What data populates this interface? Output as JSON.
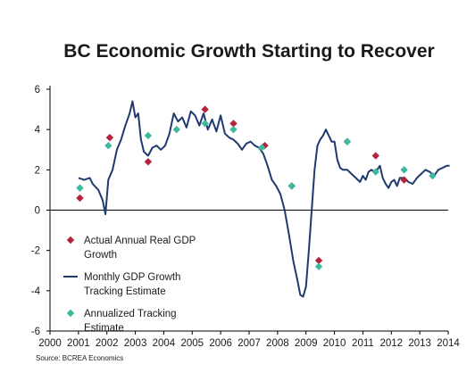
{
  "chart_data": {
    "type": "line",
    "title": "BC Economic Growth Starting to Recover",
    "xlabel": "",
    "ylabel": "",
    "source": "Source: BCREA Economics",
    "xlim": [
      2000,
      2014
    ],
    "ylim": [
      -6,
      6
    ],
    "x_ticks": [
      "2000",
      "2001",
      "2002",
      "2003",
      "2004",
      "2005",
      "2006",
      "2007",
      "2008",
      "2009",
      "2010",
      "2011",
      "2012",
      "2013",
      "2014"
    ],
    "y_ticks": [
      "6",
      "4",
      "2",
      "0",
      "-2",
      "-4",
      "-6"
    ],
    "grid": false,
    "legend_position": "lower-left",
    "legend": [
      {
        "label_lines": [
          "Actual Annual Real GDP",
          "Growth"
        ],
        "marker": "diamond",
        "color": "#b4233a"
      },
      {
        "label_lines": [
          "Monthly GDP Growth",
          "Tracking Estimate"
        ],
        "marker": "line",
        "color": "#1f3a6e"
      },
      {
        "label_lines": [
          "Annualized Tracking",
          "Estimate"
        ],
        "marker": "diamond",
        "color": "#3db89e"
      }
    ],
    "series": [
      {
        "name": "Monthly GDP Growth Tracking Estimate",
        "color": "#1f3a6e",
        "x": [
          2001.0,
          2001.2,
          2001.4,
          2001.5,
          2001.7,
          2001.85,
          2001.95,
          2002.05,
          2002.2,
          2002.35,
          2002.5,
          2002.65,
          2002.8,
          2002.9,
          2003.0,
          2003.1,
          2003.2,
          2003.3,
          2003.45,
          2003.6,
          2003.75,
          2003.9,
          2004.05,
          2004.2,
          2004.35,
          2004.5,
          2004.65,
          2004.8,
          2004.95,
          2005.1,
          2005.25,
          2005.4,
          2005.55,
          2005.7,
          2005.85,
          2006.0,
          2006.15,
          2006.3,
          2006.45,
          2006.6,
          2006.75,
          2006.9,
          2007.05,
          2007.2,
          2007.35,
          2007.5,
          2007.65,
          2007.8,
          2007.95,
          2008.1,
          2008.25,
          2008.4,
          2008.55,
          2008.7,
          2008.8,
          2008.9,
          2009.0,
          2009.1,
          2009.2,
          2009.3,
          2009.4,
          2009.5,
          2009.6,
          2009.7,
          2009.8,
          2009.9,
          2010.0,
          2010.1,
          2010.2,
          2010.3,
          2010.45,
          2010.6,
          2010.75,
          2010.9,
          2011.0,
          2011.1,
          2011.2,
          2011.3,
          2011.4,
          2011.5,
          2011.6,
          2011.7,
          2011.8,
          2011.9,
          2012.0,
          2012.1,
          2012.2,
          2012.3,
          2012.45,
          2012.6,
          2012.75,
          2012.9,
          2013.05,
          2013.2,
          2013.35,
          2013.5,
          2013.65,
          2013.8,
          2013.95,
          2014.05
        ],
        "y": [
          1.6,
          1.5,
          1.6,
          1.3,
          1.0,
          0.5,
          -0.2,
          1.5,
          2.0,
          3.0,
          3.5,
          4.2,
          4.8,
          5.4,
          4.6,
          4.8,
          3.5,
          2.9,
          2.7,
          3.1,
          3.2,
          3.0,
          3.2,
          3.8,
          4.8,
          4.4,
          4.6,
          4.1,
          4.9,
          4.7,
          4.2,
          4.8,
          4.0,
          4.5,
          3.9,
          4.7,
          3.8,
          3.6,
          3.5,
          3.3,
          3.0,
          3.3,
          3.4,
          3.2,
          3.1,
          2.8,
          2.2,
          1.5,
          1.2,
          0.8,
          0.0,
          -1.2,
          -2.5,
          -3.5,
          -4.2,
          -4.3,
          -3.8,
          -2.0,
          0.0,
          2.0,
          3.2,
          3.5,
          3.7,
          4.0,
          3.7,
          3.4,
          3.4,
          2.5,
          2.1,
          2.0,
          2.0,
          1.8,
          1.6,
          1.4,
          1.7,
          1.5,
          1.9,
          2.0,
          1.9,
          2.0,
          2.2,
          1.6,
          1.3,
          1.1,
          1.4,
          1.5,
          1.2,
          1.6,
          1.6,
          1.4,
          1.3,
          1.6,
          1.8,
          2.0,
          1.9,
          1.7,
          2.0,
          2.1,
          2.2,
          2.2
        ]
      },
      {
        "name": "Actual Annual Real GDP Growth",
        "color": "#b4233a",
        "x": [
          2001.05,
          2002.1,
          2003.45,
          2005.45,
          2006.45,
          2007.55,
          2008.5,
          2009.45,
          2010.45,
          2011.45,
          2012.45
        ],
        "y": [
          0.6,
          3.6,
          2.4,
          5.0,
          4.3,
          3.2,
          1.2,
          -2.5,
          3.4,
          2.7,
          1.5
        ]
      },
      {
        "name": "Annualized Tracking Estimate",
        "color": "#3db89e",
        "x": [
          2001.05,
          2002.05,
          2003.45,
          2004.45,
          2005.45,
          2006.45,
          2007.45,
          2008.5,
          2009.45,
          2010.45,
          2011.45,
          2012.45,
          2013.45
        ],
        "y": [
          1.1,
          3.2,
          3.7,
          4.0,
          4.3,
          4.0,
          3.1,
          1.2,
          -2.8,
          3.4,
          1.9,
          2.0,
          1.7
        ]
      }
    ]
  }
}
